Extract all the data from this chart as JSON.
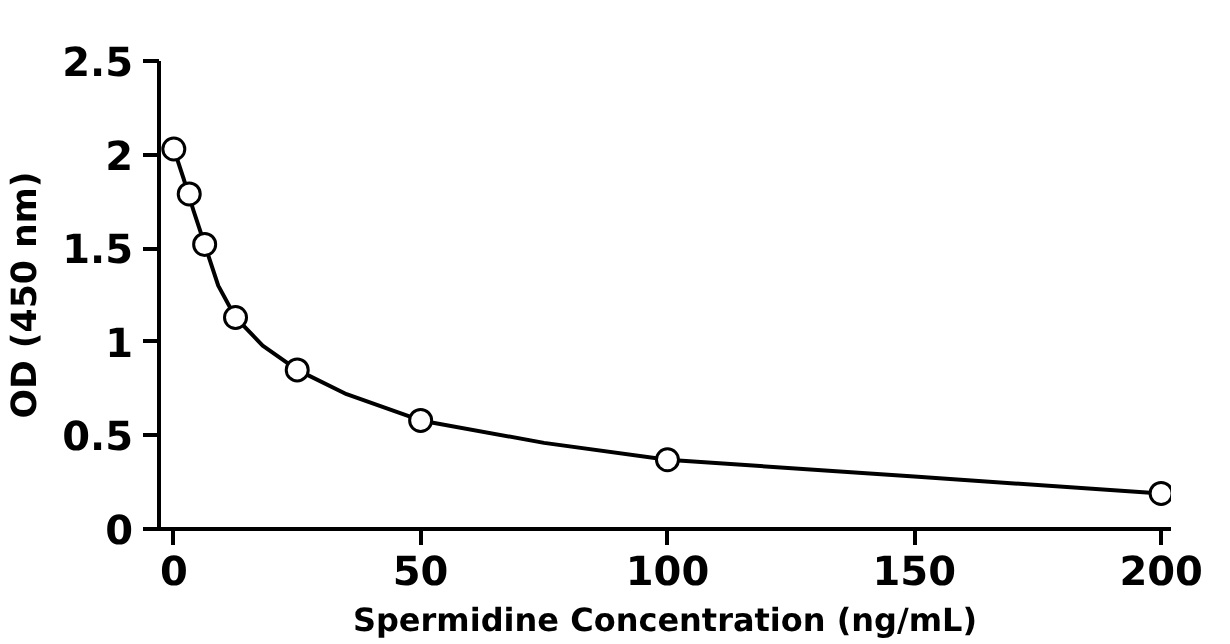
{
  "chart_data": {
    "type": "scatter",
    "xlabel": "Spermidine Concentration (ng/mL)",
    "ylabel": "OD (450 nm)",
    "series": [
      {
        "type": "line",
        "color": "#000000",
        "x": [
          0,
          2,
          4,
          6.25,
          9,
          12.5,
          18,
          25,
          35,
          50,
          75,
          100,
          150,
          200
        ],
        "values": [
          2.03,
          1.87,
          1.7,
          1.52,
          1.3,
          1.13,
          0.98,
          0.85,
          0.72,
          0.58,
          0.46,
          0.37,
          0.28,
          0.19
        ],
        "marker": "none"
      },
      {
        "color": "#000000",
        "x": [
          0,
          3.125,
          6.25,
          12.5,
          25,
          50,
          100,
          200
        ],
        "values": [
          2.03,
          1.79,
          1.52,
          1.13,
          0.85,
          0.58,
          0.37,
          0.19
        ],
        "marker": "circle"
      }
    ],
    "xlim": [
      -3,
      202
    ],
    "ylim": [
      0,
      2.5
    ],
    "xticks": [
      0,
      50,
      100,
      150,
      200
    ],
    "yticks": [
      0,
      0.5,
      1,
      1.5,
      2,
      2.5
    ],
    "grid": false
  }
}
